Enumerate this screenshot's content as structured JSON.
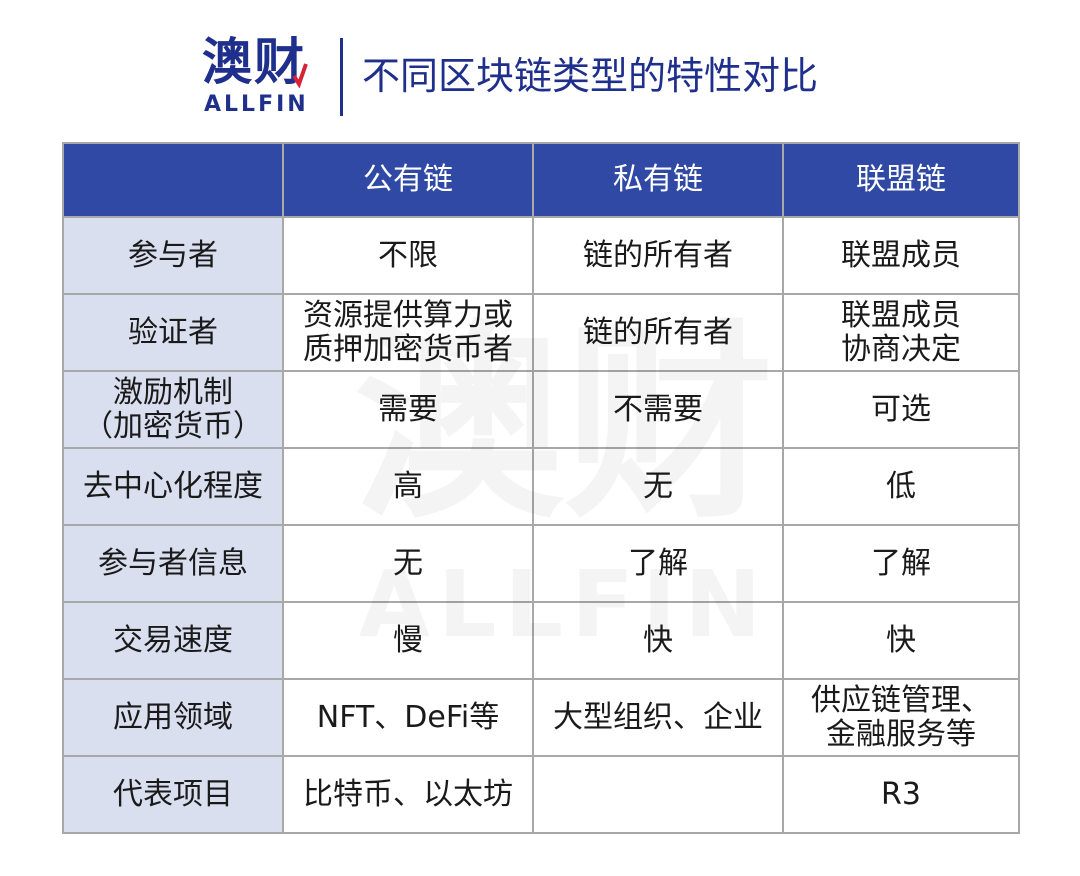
{
  "logo": {
    "text_cn": "澳财",
    "text_en": "ALLFIN"
  },
  "title": "不同区块链类型的特性对比",
  "watermark": {
    "text_cn": "澳财",
    "text_en": "ALLFIN"
  },
  "colors": {
    "brand": "#1f2f8c",
    "header_bg": "#2f49a5",
    "row_label_bg": "#dadff0",
    "accent": "#d6233a"
  },
  "table": {
    "columns": [
      "",
      "公有链",
      "私有链",
      "联盟链"
    ],
    "rows": [
      {
        "label": "参与者",
        "cells": [
          "不限",
          "链的所有者",
          "联盟成员"
        ]
      },
      {
        "label": "验证者",
        "cells": [
          "资源提供算力或\n质押加密货币者",
          "链的所有者",
          "联盟成员\n协商决定"
        ]
      },
      {
        "label": "激励机制\n（加密货币）",
        "cells": [
          "需要",
          "不需要",
          "可选"
        ]
      },
      {
        "label": "去中心化程度",
        "cells": [
          "高",
          "无",
          "低"
        ]
      },
      {
        "label": "参与者信息",
        "cells": [
          "无",
          "了解",
          "了解"
        ]
      },
      {
        "label": "交易速度",
        "cells": [
          "慢",
          "快",
          "快"
        ]
      },
      {
        "label": "应用领域",
        "cells": [
          "NFT、DeFi等",
          "大型组织、企业",
          "供应链管理、\n金融服务等"
        ]
      },
      {
        "label": "代表项目",
        "cells": [
          "比特币、以太坊",
          "",
          "R3"
        ]
      }
    ]
  }
}
